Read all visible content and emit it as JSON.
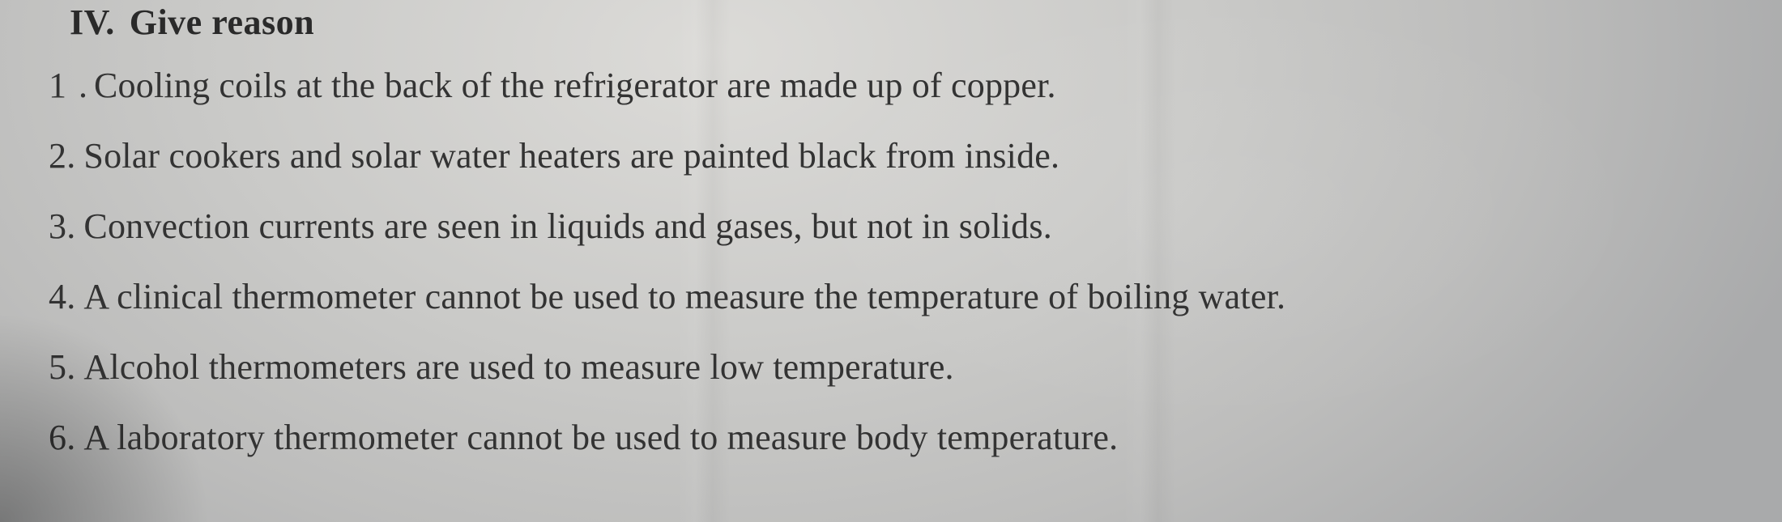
{
  "text_color": "#2b2b2b",
  "font_family": "Times New Roman",
  "heading": {
    "roman": "IV.",
    "title": "Give reason",
    "font_size_pt": 33,
    "weight": "bold"
  },
  "questions": {
    "font_size_pt": 33,
    "weight": "normal",
    "items": [
      {
        "num": "1 .",
        "text": "Cooling coils at the back of the refrigerator are made up of copper."
      },
      {
        "num": "2.",
        "text": "Solar cookers and solar water heaters are painted black from inside."
      },
      {
        "num": "3.",
        "text": "Convection currents are seen in liquids and gases, but not in solids."
      },
      {
        "num": "4.",
        "text": "A clinical thermometer cannot be used to measure the temperature of boiling water."
      },
      {
        "num": "5.",
        "text": "Alcohol thermometers are used to measure low temperature."
      },
      {
        "num": "6.",
        "text": "A laboratory thermometer cannot be used to measure body temperature."
      }
    ]
  },
  "paper": {
    "background_gradient": [
      "#dcdbd8",
      "#c9c9c7",
      "#bdbdbc",
      "#a9aaab"
    ],
    "crease_positions_pct": [
      39,
      64
    ],
    "corner_shadow": "bottom-left"
  }
}
